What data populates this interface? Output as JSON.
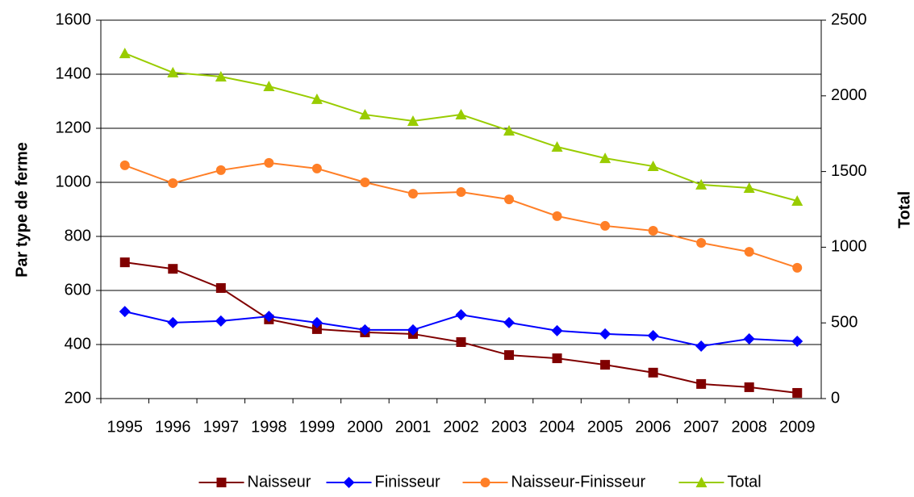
{
  "chart_data": {
    "type": "line",
    "ylabel": "Par type de ferme",
    "y2label": "Total",
    "categories": [
      "1995",
      "1996",
      "1997",
      "1998",
      "1999",
      "2000",
      "2001",
      "2002",
      "2003",
      "2004",
      "2005",
      "2006",
      "2007",
      "2008",
      "2009"
    ],
    "series": [
      {
        "name": "Naisseur",
        "color": "#800000",
        "marker": "square",
        "values": [
          704,
          680,
          609,
          493,
          457,
          445,
          439,
          409,
          361,
          349,
          325,
          296,
          254,
          242,
          221
        ]
      },
      {
        "name": "Finisseur",
        "color": "#0000ff",
        "marker": "diamond",
        "values": [
          522,
          481,
          487,
          504,
          481,
          454,
          454,
          510,
          481,
          451,
          439,
          433,
          394,
          421,
          412
        ]
      },
      {
        "name": "Naisseur-Finisseur",
        "color": "#ff7f27",
        "marker": "circle",
        "values": [
          1063,
          997,
          1045,
          1072,
          1051,
          1000,
          958,
          964,
          937,
          875,
          839,
          821,
          776,
          743,
          684
        ]
      },
      {
        "name": "Total",
        "color": "#99cc00",
        "marker": "triangle",
        "axis": "y2",
        "values": [
          2281,
          2154,
          2127,
          2063,
          1978,
          1876,
          1834,
          1876,
          1770,
          1663,
          1588,
          1535,
          1413,
          1391,
          1306
        ]
      }
    ],
    "ylim": [
      200,
      1600
    ],
    "yticks": [
      200,
      400,
      600,
      800,
      1000,
      1200,
      1400,
      1600
    ],
    "y2lim": [
      0,
      2500
    ],
    "y2ticks": [
      0,
      500,
      1000,
      1500,
      2000,
      2500
    ],
    "grid": true,
    "legend": "bottom"
  }
}
